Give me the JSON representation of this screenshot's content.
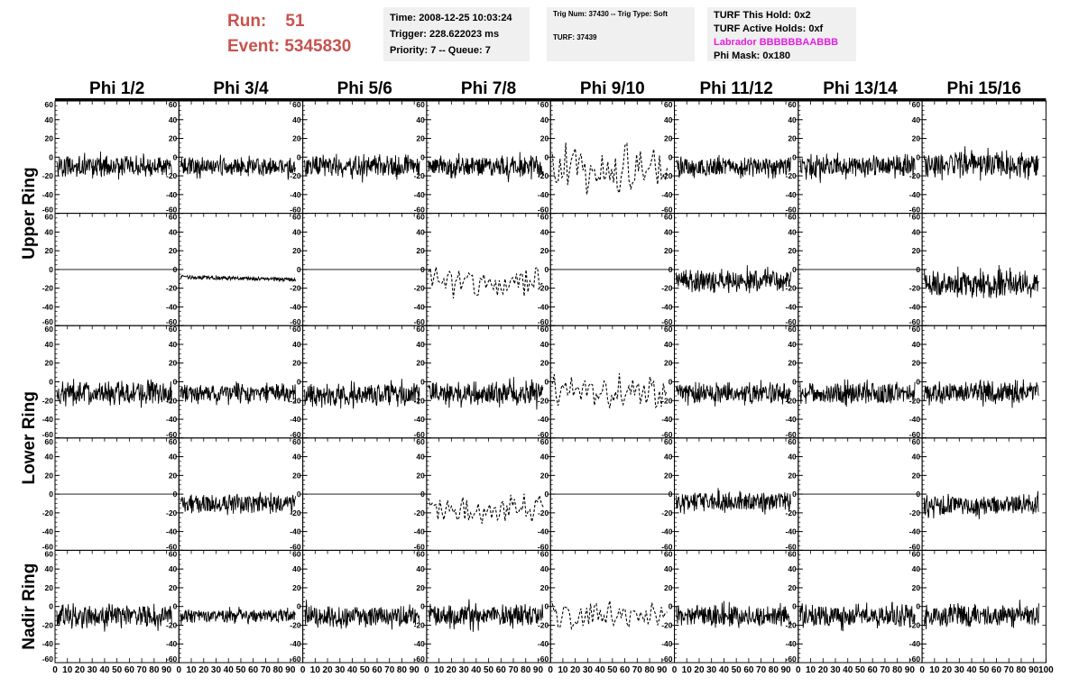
{
  "run": {
    "run_label": "Run:",
    "run_value": "51",
    "event_label": "Event:",
    "event_value": "5345830"
  },
  "info_time": {
    "time": "Time: 2008-12-25 10:03:24",
    "trigger": "Trigger: 228.622023 ms",
    "priority": "Priority: 7 -- Queue: 7"
  },
  "info_trig": {
    "trig": "Trig Num: 37430 -- Trig Type: Soft",
    "turf": "TURF: 37439"
  },
  "info_turf": {
    "hold": "TURF This Hold: 0x2",
    "active": "TURF Active Holds: 0xf",
    "labrador": "Labrador BBBBBBAABBB",
    "phimask": "Phi Mask: 0x180"
  },
  "colors": {
    "run_text": "#c8524e",
    "labrador": "#e020e0",
    "info_bg": "#f0f0f0",
    "trace": "#000000"
  },
  "chart_data": {
    "type": "line",
    "columns": [
      "Phi 1/2",
      "Phi 3/4",
      "Phi 5/6",
      "Phi 7/8",
      "Phi 9/10",
      "Phi 11/12",
      "Phi 13/14",
      "Phi 15/16"
    ],
    "ring_labels": [
      "Upper Ring",
      "Lower Ring",
      "Nadir Ring"
    ],
    "xlim": [
      0,
      100
    ],
    "ylim": [
      -60,
      60
    ],
    "x_ticks": [
      "0",
      "10",
      "20",
      "30",
      "40",
      "50",
      "60",
      "70",
      "80",
      "90",
      "100"
    ],
    "y_ticks": [
      "60",
      "40",
      "20",
      "0",
      "-20",
      "-40",
      "-60"
    ],
    "rows": [
      {
        "style": [
          "noise",
          "noise",
          "noise",
          "noise",
          "dashed",
          "noise",
          "noise",
          "noise"
        ],
        "amp": [
          14,
          13,
          15,
          15,
          26,
          13,
          15,
          18
        ],
        "offset": [
          -10,
          -10,
          -10,
          -10,
          -12,
          -10,
          -10,
          -8
        ]
      },
      {
        "style": [
          "flat",
          "drift",
          "flat",
          "dashed",
          "flat",
          "noise",
          "flat",
          "noise"
        ],
        "amp": [
          0,
          2,
          0,
          18,
          0,
          15,
          0,
          17
        ],
        "offset": [
          0,
          -8,
          0,
          -15,
          0,
          -12,
          0,
          -15
        ]
      },
      {
        "style": [
          "noise",
          "noise",
          "noise",
          "noise",
          "dashed",
          "noise",
          "noise",
          "noise"
        ],
        "amp": [
          16,
          13,
          16,
          16,
          19,
          14,
          15,
          15
        ],
        "offset": [
          -12,
          -12,
          -14,
          -12,
          -12,
          -12,
          -12,
          -12
        ]
      },
      {
        "style": [
          "flat",
          "noise",
          "flat",
          "dashed",
          "flat",
          "noise",
          "flat",
          "noise"
        ],
        "amp": [
          0,
          13,
          0,
          18,
          0,
          14,
          0,
          14
        ],
        "offset": [
          0,
          -10,
          0,
          -16,
          0,
          -8,
          0,
          -12
        ]
      },
      {
        "style": [
          "noise",
          "noise",
          "noise",
          "noise",
          "dashed",
          "noise",
          "noise",
          "noise"
        ],
        "amp": [
          16,
          9,
          15,
          15,
          15,
          15,
          15,
          14
        ],
        "offset": [
          -10,
          -10,
          -10,
          -10,
          -10,
          -10,
          -10,
          -10
        ]
      }
    ]
  }
}
